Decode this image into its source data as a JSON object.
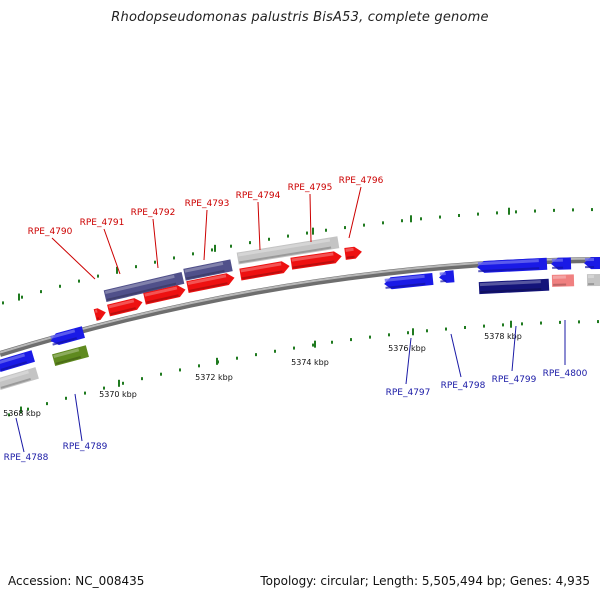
{
  "title": "Rhodopseudomonas palustris BisA53, complete genome",
  "footer": {
    "accession": "Accession: NC_008435",
    "topology": "Topology: circular; Length: 5,505,494 bp; Genes: 4,935"
  },
  "colors": {
    "backbone": "#8a8a8a",
    "label_forward": "#cc0000",
    "label_reverse": "#1a1aa6",
    "tick": "#1f7a1f"
  },
  "scale_ticks": [
    {
      "label": "5368 kbp"
    },
    {
      "label": "5370 kbp"
    },
    {
      "label": "5372 kbp"
    },
    {
      "label": "5374 kbp"
    },
    {
      "label": "5376 kbp"
    },
    {
      "label": "5378 kbp"
    }
  ],
  "genes_forward": [
    {
      "name": "RPE_4790",
      "color": "#50508a"
    },
    {
      "name": "RPE_4791",
      "color": "#50508a"
    },
    {
      "name": "RPE_4792",
      "color": "#50508a"
    },
    {
      "name": "RPE_4793",
      "color": "#50508a"
    },
    {
      "name": "RPE_4794",
      "color": "#c4c4c4"
    },
    {
      "name": "RPE_4795",
      "color": "#c4c4c4"
    },
    {
      "name": "RPE_4796",
      "color": "#ee1111"
    }
  ],
  "genes_reverse": [
    {
      "name": "RPE_4788",
      "color": "#1a1ae6"
    },
    {
      "name": "RPE_4789",
      "color": "#5f8a1f"
    },
    {
      "name": "RPE_4797",
      "color": "#1a1ae6"
    },
    {
      "name": "RPE_4798",
      "color": "#1a1ae6"
    },
    {
      "name": "RPE_4799",
      "color": "#14147a"
    },
    {
      "name": "RPE_4800",
      "color": "#f08080"
    }
  ]
}
